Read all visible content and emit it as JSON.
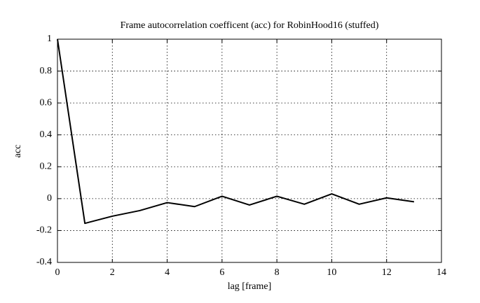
{
  "chart_data": {
    "type": "line",
    "title": "Frame autocorrelation coefficent (acc) for RobinHood16 (stuffed)",
    "xlabel": "lag [frame]",
    "ylabel": "acc",
    "x": [
      0,
      1,
      2,
      3,
      4,
      5,
      6,
      7,
      8,
      9,
      10,
      11,
      12,
      13
    ],
    "series": [
      {
        "color": "#000000",
        "values": [
          1.0,
          -0.155,
          -0.11,
          -0.075,
          -0.025,
          -0.05,
          0.015,
          -0.04,
          0.015,
          -0.035,
          0.03,
          -0.035,
          0.005,
          -0.02
        ]
      }
    ],
    "xlim": [
      0,
      14
    ],
    "xticks": [
      0,
      2,
      4,
      6,
      8,
      10,
      12,
      14
    ],
    "ylim": [
      -0.4,
      1
    ],
    "yticks": [
      -0.4,
      -0.2,
      0,
      0.2,
      0.4,
      0.6,
      0.8,
      1
    ],
    "grid": true
  }
}
